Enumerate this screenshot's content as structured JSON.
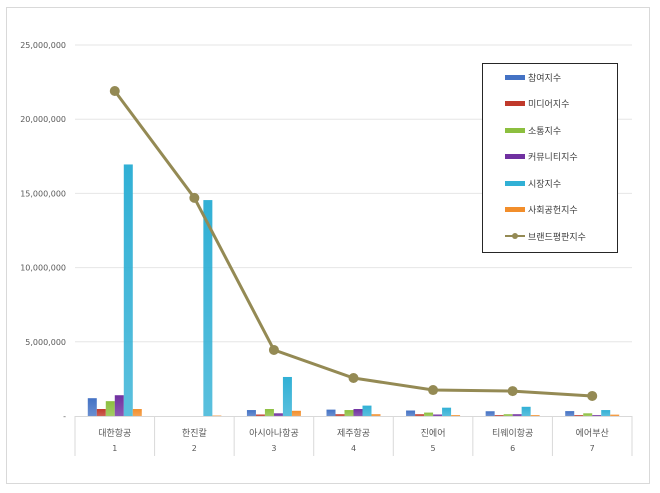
{
  "chart_data": {
    "type": "bar",
    "title": "",
    "xlabel": "",
    "ylabel": "",
    "ylim": [
      0,
      25000000
    ],
    "yticks": [
      "-",
      "5,000,000",
      "10,000,000",
      "15,000,000",
      "20,000,000",
      "25,000,000"
    ],
    "grid": true,
    "legend_position": "right-inside",
    "categories": [
      "대한항공",
      "한진칼",
      "아시아나항공",
      "제주항공",
      "진에어",
      "티웨이항공",
      "에어부산"
    ],
    "category_ranks": [
      "1",
      "2",
      "3",
      "4",
      "5",
      "6",
      "7"
    ],
    "series": [
      {
        "name": "참여지수",
        "type": "bar",
        "color": "#4472c4",
        "values": [
          1200000,
          0,
          400000,
          430000,
          370000,
          320000,
          330000
        ]
      },
      {
        "name": "미디어지수",
        "type": "bar",
        "color": "#c0392b",
        "values": [
          470000,
          0,
          100000,
          120000,
          120000,
          60000,
          60000
        ]
      },
      {
        "name": "소통지수",
        "type": "bar",
        "color": "#8cbf3f",
        "values": [
          1000000,
          0,
          470000,
          400000,
          230000,
          120000,
          180000
        ]
      },
      {
        "name": "커뮤니티지수",
        "type": "bar",
        "color": "#7030a0",
        "values": [
          1400000,
          0,
          180000,
          470000,
          100000,
          120000,
          60000
        ]
      },
      {
        "name": "시장지수",
        "type": "bar",
        "color": "#31b0d5",
        "values": [
          16950000,
          14550000,
          2630000,
          700000,
          560000,
          620000,
          400000
        ]
      },
      {
        "name": "사회공헌지수",
        "type": "bar",
        "color": "#f28e2b",
        "values": [
          470000,
          30000,
          350000,
          120000,
          60000,
          60000,
          90000
        ]
      },
      {
        "name": "브랜드평판지수",
        "type": "line",
        "color": "#948a54",
        "values": [
          21900000,
          14700000,
          4450000,
          2560000,
          1750000,
          1680000,
          1350000
        ]
      }
    ]
  }
}
